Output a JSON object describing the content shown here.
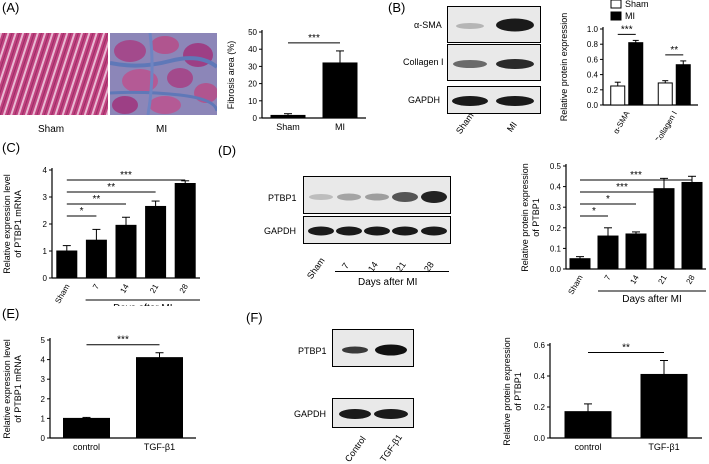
{
  "panels": {
    "A": {
      "label": "(A)",
      "sham_label": "Sham",
      "mi_label": "MI"
    },
    "B": {
      "label": "(B)",
      "blot_rows": [
        "α-SMA",
        "Collagen I",
        "GAPDH"
      ],
      "lanes": [
        "Sham",
        "MI"
      ]
    },
    "C": {
      "label": "(C)"
    },
    "D": {
      "label": "(D)",
      "blot_rows": [
        "PTBP1",
        "GAPDH"
      ],
      "lanes": [
        "Sham",
        "7",
        "14",
        "21",
        "28"
      ],
      "days_label": "Days after MI"
    },
    "E": {
      "label": "(E)"
    },
    "F": {
      "label": "(F)",
      "blot_rows": [
        "PTBP1",
        "GAPDH"
      ],
      "lanes": [
        "Control",
        "TGF-β1"
      ]
    }
  },
  "chart_data": [
    {
      "id": "A-fibrosis",
      "type": "bar",
      "categories": [
        "Sham",
        "MI"
      ],
      "values": [
        1.5,
        32
      ],
      "errors": [
        1,
        7
      ],
      "ylabel": "Fibrosis area (%)",
      "ylim": [
        0,
        50
      ],
      "yticks": [
        0,
        10,
        20,
        30,
        40,
        50
      ],
      "significance": [
        {
          "pair": [
            0,
            1
          ],
          "text": "***"
        }
      ]
    },
    {
      "id": "B-protein",
      "type": "bar",
      "categories": [
        "α-SMA",
        "Collagen I"
      ],
      "series": [
        {
          "name": "Sham",
          "values": [
            0.25,
            0.29
          ],
          "errors": [
            0.05,
            0.03
          ],
          "color": "#ffffff"
        },
        {
          "name": "MI",
          "values": [
            0.82,
            0.53
          ],
          "errors": [
            0.03,
            0.05
          ],
          "color": "#000000"
        }
      ],
      "ylabel": "Relative protein expression",
      "ylim": [
        0,
        1.0
      ],
      "yticks": [
        "0.0",
        "0.2",
        "0.4",
        "0.6",
        "0.8",
        "1.0"
      ],
      "legend": [
        "Sham",
        "MI"
      ],
      "legend_placement": "top",
      "significance": [
        {
          "group": 0,
          "text": "***"
        },
        {
          "group": 1,
          "text": "**"
        }
      ]
    },
    {
      "id": "C-mrna",
      "type": "bar",
      "categories": [
        "Sham",
        "7",
        "14",
        "21",
        "28"
      ],
      "values": [
        1.0,
        1.4,
        1.95,
        2.65,
        3.5
      ],
      "errors": [
        0.2,
        0.4,
        0.3,
        0.2,
        0.1
      ],
      "ylabel": "Relative expression level of PTBP1 mRNA",
      "ylim": [
        0,
        4
      ],
      "yticks": [
        0,
        1,
        2,
        3,
        4
      ],
      "xgroup_label": "Days after MI",
      "significance": [
        {
          "pair": [
            0,
            1
          ],
          "text": "*"
        },
        {
          "pair": [
            0,
            2
          ],
          "text": "**"
        },
        {
          "pair": [
            0,
            3
          ],
          "text": "**"
        },
        {
          "pair": [
            0,
            4
          ],
          "text": "***"
        }
      ]
    },
    {
      "id": "D-protein",
      "type": "bar",
      "categories": [
        "Sham",
        "7",
        "14",
        "21",
        "28"
      ],
      "values": [
        0.05,
        0.16,
        0.17,
        0.39,
        0.42
      ],
      "errors": [
        0.01,
        0.04,
        0.01,
        0.05,
        0.03
      ],
      "ylabel": "Relative protein expression of PTBP1",
      "ylim": [
        0,
        0.5
      ],
      "yticks": [
        "0.0",
        "0.1",
        "0.2",
        "0.3",
        "0.4",
        "0.5"
      ],
      "xgroup_label": "Days after MI",
      "significance": [
        {
          "pair": [
            0,
            1
          ],
          "text": "*"
        },
        {
          "pair": [
            0,
            2
          ],
          "text": "*"
        },
        {
          "pair": [
            0,
            3
          ],
          "text": "***"
        },
        {
          "pair": [
            0,
            4
          ],
          "text": "***"
        }
      ]
    },
    {
      "id": "E-mrna",
      "type": "bar",
      "categories": [
        "control",
        "TGF-β1"
      ],
      "values": [
        1.0,
        4.1
      ],
      "errors": [
        0.05,
        0.25
      ],
      "ylabel": "Relative expression level of PTBP1 mRNA",
      "ylim": [
        0,
        5
      ],
      "yticks": [
        0,
        1,
        2,
        3,
        4,
        5
      ],
      "significance": [
        {
          "pair": [
            0,
            1
          ],
          "text": "***"
        }
      ]
    },
    {
      "id": "F-protein",
      "type": "bar",
      "categories": [
        "control",
        "TGF-β1"
      ],
      "values": [
        0.17,
        0.41
      ],
      "errors": [
        0.05,
        0.09
      ],
      "ylabel": "Relative protein expression of PTBP1",
      "ylim": [
        0,
        0.6
      ],
      "yticks": [
        "0.0",
        "0.2",
        "0.4",
        "0.6"
      ],
      "significance": [
        {
          "pair": [
            0,
            1
          ],
          "text": "**"
        }
      ]
    }
  ]
}
